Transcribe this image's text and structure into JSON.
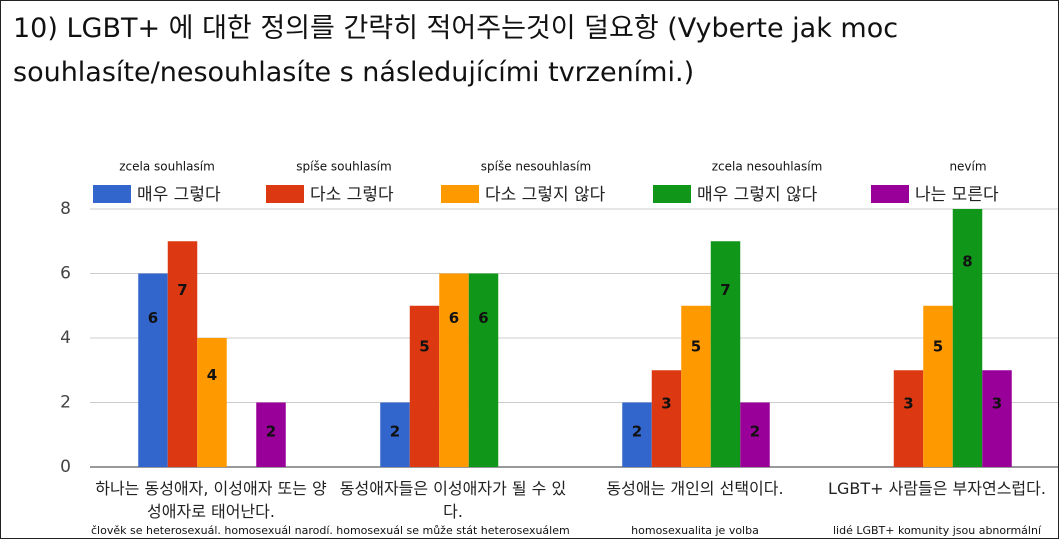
{
  "chart_data": {
    "type": "bar",
    "title": "10) LGBT+ 에 대한 정의를 간략히 적어주는것이 덜요항 (Vyberte jak moc souhlasíte/nesouhlasíte s následujícími tvrzeními.)",
    "categories": [
      "하나는 동성애자, 이성애자 또는 양성애자로 태어난다.",
      "동성애자들은 이성애자가 될 수 있다.",
      "동성애는 개인의 선택이다.",
      "LGBT+ 사람들은 부자연스럽다."
    ],
    "category_notes": [
      "člověk se heterosexuál. homosexuál narodí.",
      "homosexuál se může stát heterosexuálem",
      "homosexualita je volba",
      "lidé LGBT+ komunity jsou abnormální"
    ],
    "legend_notes": [
      "zcela souhlasím",
      "spíše souhlasím",
      "spíše nesouhlasím",
      "zcela nesouhlasím",
      "nevím"
    ],
    "series": [
      {
        "name": "매우 그렇다",
        "color": "#3366cc",
        "values": [
          6,
          2,
          2,
          0
        ]
      },
      {
        "name": "다소 그렇다",
        "color": "#dc3912",
        "values": [
          7,
          5,
          3,
          3
        ]
      },
      {
        "name": "다소 그렇지 않다",
        "color": "#ff9900",
        "values": [
          4,
          6,
          5,
          5
        ]
      },
      {
        "name": "매우 그렇지 않다",
        "color": "#109618",
        "values": [
          0,
          6,
          7,
          8
        ]
      },
      {
        "name": "나는 모른다",
        "color": "#990099",
        "values": [
          2,
          0,
          2,
          3
        ]
      }
    ],
    "ylim": [
      0,
      8
    ],
    "yticks": [
      0,
      2,
      4,
      6,
      8
    ],
    "grid": true,
    "legend": "top"
  }
}
